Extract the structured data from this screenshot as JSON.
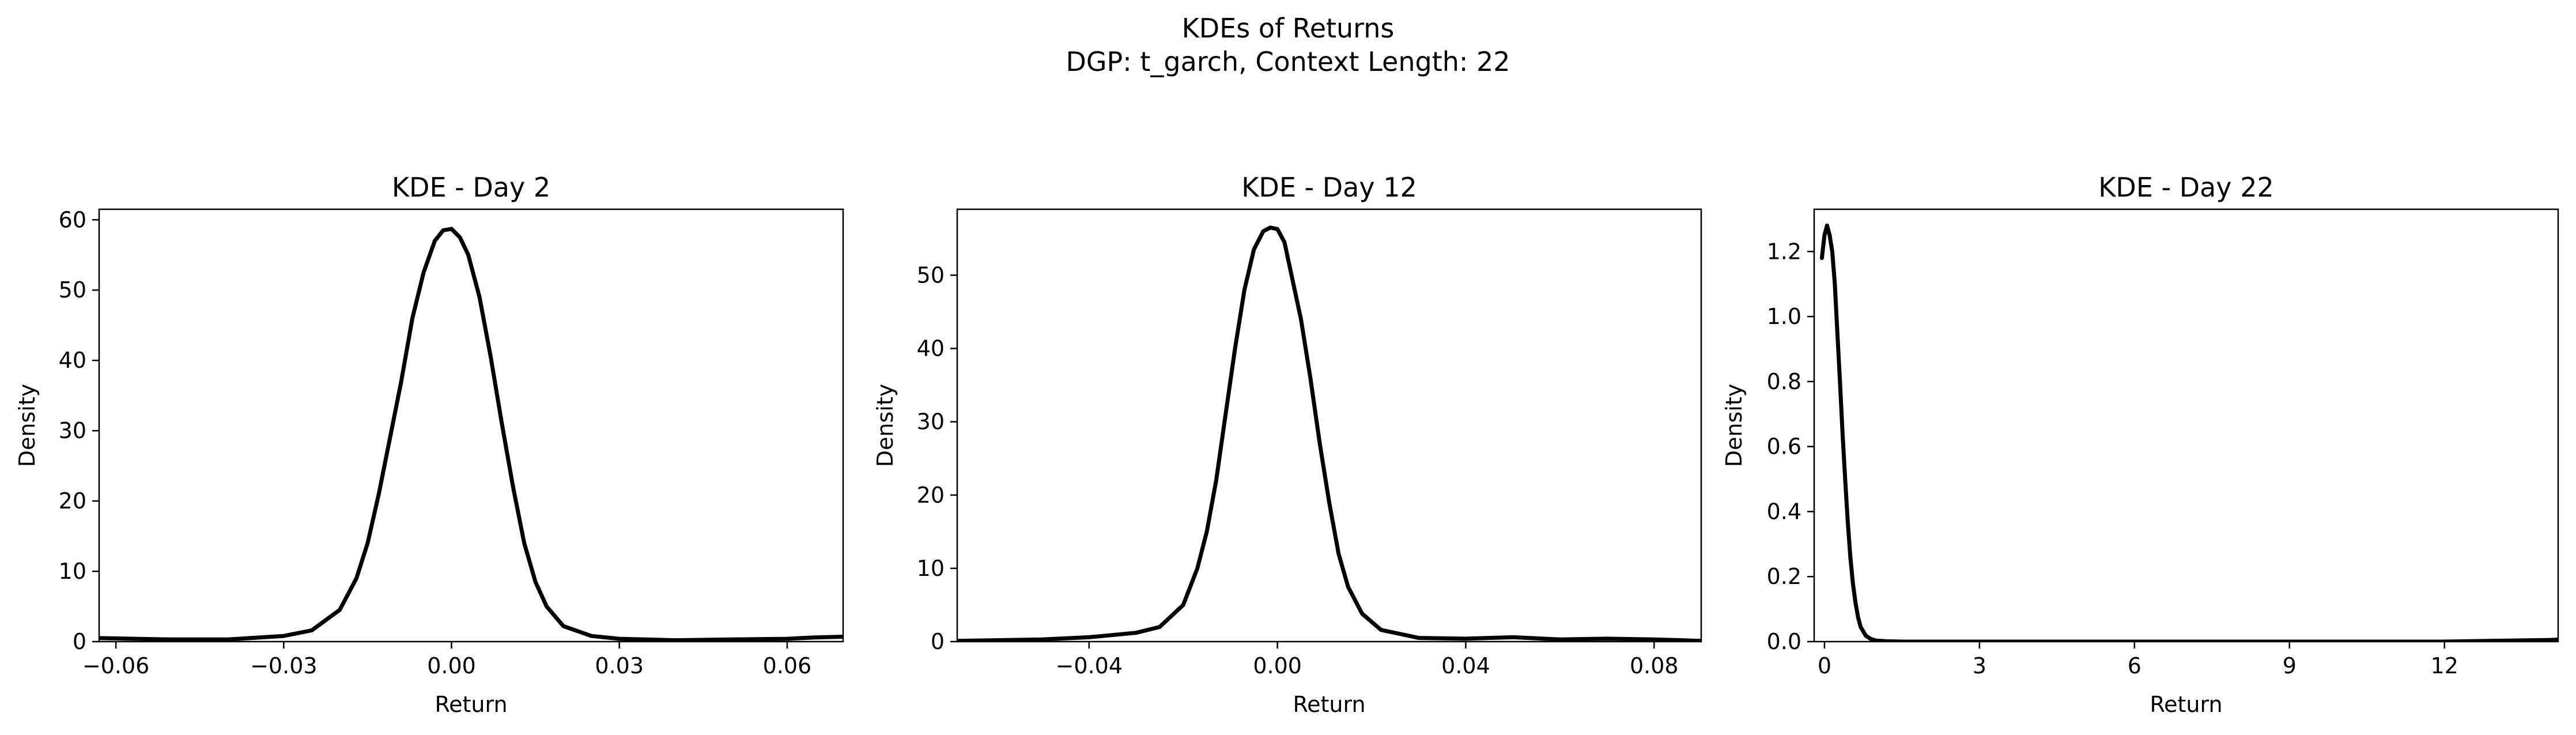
{
  "figure": {
    "title": "KDEs of Returns",
    "subtitle": "DGP: t_garch, Context Length: 22"
  },
  "chart_data": [
    {
      "type": "line",
      "title": "KDE - Day 2",
      "xlabel": "Return",
      "ylabel": "Density",
      "xlim": [
        -0.063,
        0.07
      ],
      "ylim": [
        0,
        61.5
      ],
      "xticks": [
        -0.06,
        -0.03,
        0.0,
        0.03,
        0.06
      ],
      "xtick_labels": [
        "−0.06",
        "−0.03",
        "0.00",
        "0.03",
        "0.06"
      ],
      "yticks": [
        0,
        10,
        20,
        30,
        40,
        50,
        60
      ],
      "ytick_labels": [
        "0",
        "10",
        "20",
        "30",
        "40",
        "50",
        "60"
      ],
      "grid": false,
      "line_color": "#000000",
      "series": [
        {
          "x": [
            -0.063,
            -0.05,
            -0.04,
            -0.03,
            -0.025,
            -0.02,
            -0.017,
            -0.015,
            -0.013,
            -0.011,
            -0.009,
            -0.007,
            -0.005,
            -0.003,
            -0.0015,
            0.0,
            0.0015,
            0.003,
            0.005,
            0.007,
            0.009,
            0.011,
            0.013,
            0.015,
            0.017,
            0.02,
            0.025,
            0.03,
            0.04,
            0.05,
            0.06,
            0.065,
            0.07
          ],
          "y": [
            0.5,
            0.3,
            0.3,
            0.8,
            1.6,
            4.5,
            9,
            14,
            21,
            29,
            37,
            46,
            52.5,
            57,
            58.5,
            58.7,
            57.5,
            55,
            49,
            40.5,
            31,
            22,
            14,
            8.5,
            5,
            2.2,
            0.8,
            0.4,
            0.2,
            0.3,
            0.4,
            0.6,
            0.7
          ]
        }
      ]
    },
    {
      "type": "line",
      "title": "KDE - Day 12",
      "xlabel": "Return",
      "ylabel": "Density",
      "xlim": [
        -0.068,
        0.09
      ],
      "ylim": [
        0,
        59
      ],
      "xticks": [
        -0.04,
        0.0,
        0.04,
        0.08
      ],
      "xtick_labels": [
        "−0.04",
        "0.00",
        "0.04",
        "0.08"
      ],
      "yticks": [
        0,
        10,
        20,
        30,
        40,
        50
      ],
      "ytick_labels": [
        "0",
        "10",
        "20",
        "30",
        "40",
        "50"
      ],
      "grid": false,
      "line_color": "#000000",
      "series": [
        {
          "x": [
            -0.068,
            -0.05,
            -0.04,
            -0.03,
            -0.025,
            -0.02,
            -0.017,
            -0.015,
            -0.013,
            -0.011,
            -0.009,
            -0.007,
            -0.005,
            -0.003,
            -0.0015,
            0.0,
            0.0015,
            0.003,
            0.005,
            0.007,
            0.009,
            0.011,
            0.013,
            0.015,
            0.018,
            0.022,
            0.03,
            0.04,
            0.05,
            0.06,
            0.07,
            0.08,
            0.09
          ],
          "y": [
            0.1,
            0.3,
            0.6,
            1.2,
            2,
            5,
            10,
            15,
            22,
            31,
            40,
            48,
            53.5,
            56,
            56.5,
            56.3,
            54.5,
            50,
            44,
            36,
            27,
            19,
            12,
            7.5,
            3.8,
            1.6,
            0.5,
            0.4,
            0.6,
            0.3,
            0.4,
            0.3,
            0.1
          ]
        }
      ]
    },
    {
      "type": "line",
      "title": "KDE - Day 22",
      "xlabel": "Return",
      "ylabel": "Density",
      "xlim": [
        -0.2,
        14.2
      ],
      "ylim": [
        0,
        1.33
      ],
      "xticks": [
        0,
        3,
        6,
        9,
        12
      ],
      "xtick_labels": [
        "0",
        "3",
        "6",
        "9",
        "12"
      ],
      "yticks": [
        0.0,
        0.2,
        0.4,
        0.6,
        0.8,
        1.0,
        1.2
      ],
      "ytick_labels": [
        "0.0",
        "0.2",
        "0.4",
        "0.6",
        "0.8",
        "1.0",
        "1.2"
      ],
      "grid": false,
      "line_color": "#000000",
      "series": [
        {
          "x": [
            -0.05,
            0.0,
            0.05,
            0.1,
            0.15,
            0.2,
            0.25,
            0.3,
            0.35,
            0.4,
            0.45,
            0.5,
            0.55,
            0.6,
            0.65,
            0.7,
            0.8,
            0.9,
            1.0,
            1.2,
            1.5,
            2,
            4,
            8,
            12,
            14,
            14.2
          ],
          "y": [
            1.18,
            1.25,
            1.28,
            1.25,
            1.2,
            1.1,
            0.95,
            0.8,
            0.64,
            0.5,
            0.37,
            0.26,
            0.18,
            0.12,
            0.075,
            0.045,
            0.018,
            0.008,
            0.003,
            0.001,
            0.0,
            0.0,
            0.0,
            0.0,
            0.0,
            0.005,
            0.006
          ]
        }
      ]
    }
  ]
}
